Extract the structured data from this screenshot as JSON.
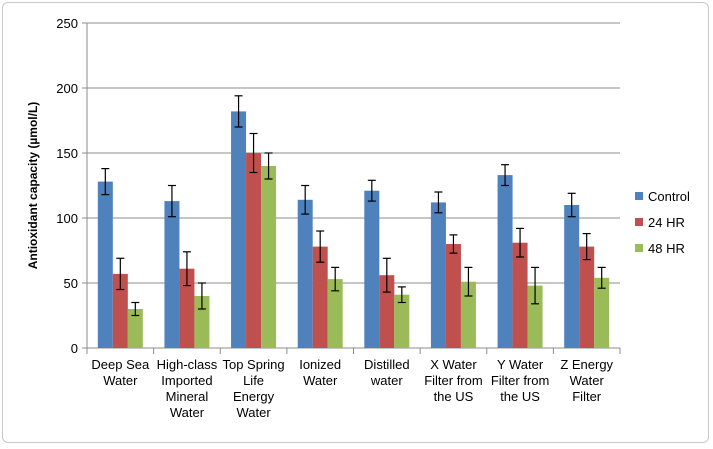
{
  "chart_data": {
    "type": "bar",
    "title": "",
    "xlabel": "",
    "ylabel": "Antioxidant capacity (µmol/L)",
    "ylim": [
      0,
      250
    ],
    "yticks": [
      0,
      50,
      100,
      150,
      200,
      250
    ],
    "grid": true,
    "legend_position": "right",
    "categories": [
      [
        "Deep Sea",
        "Water"
      ],
      [
        "High-class",
        "Imported",
        "Mineral",
        "Water"
      ],
      [
        "Top Spring",
        "Life",
        "Energy",
        "Water"
      ],
      [
        "Ionized",
        "Water"
      ],
      [
        "Distilled",
        "water"
      ],
      [
        "X Water",
        "Filter from",
        "the US"
      ],
      [
        "Y Water",
        "Filter from",
        "the US"
      ],
      [
        "Z Energy",
        "Water",
        "Filter"
      ]
    ],
    "series": [
      {
        "name": "Control",
        "color": "#4f81bd",
        "values": [
          128,
          113,
          182,
          114,
          121,
          112,
          133,
          110
        ],
        "errors": [
          10,
          12,
          12,
          11,
          8,
          8,
          8,
          9
        ]
      },
      {
        "name": "24 HR",
        "color": "#c0504d",
        "values": [
          57,
          61,
          150,
          78,
          56,
          80,
          81,
          78
        ],
        "errors": [
          12,
          13,
          15,
          12,
          13,
          7,
          11,
          10
        ]
      },
      {
        "name": "48 HR",
        "color": "#9bbb59",
        "values": [
          30,
          40,
          140,
          53,
          41,
          51,
          48,
          54
        ],
        "errors": [
          5,
          10,
          10,
          9,
          6,
          11,
          14,
          8
        ]
      }
    ]
  }
}
